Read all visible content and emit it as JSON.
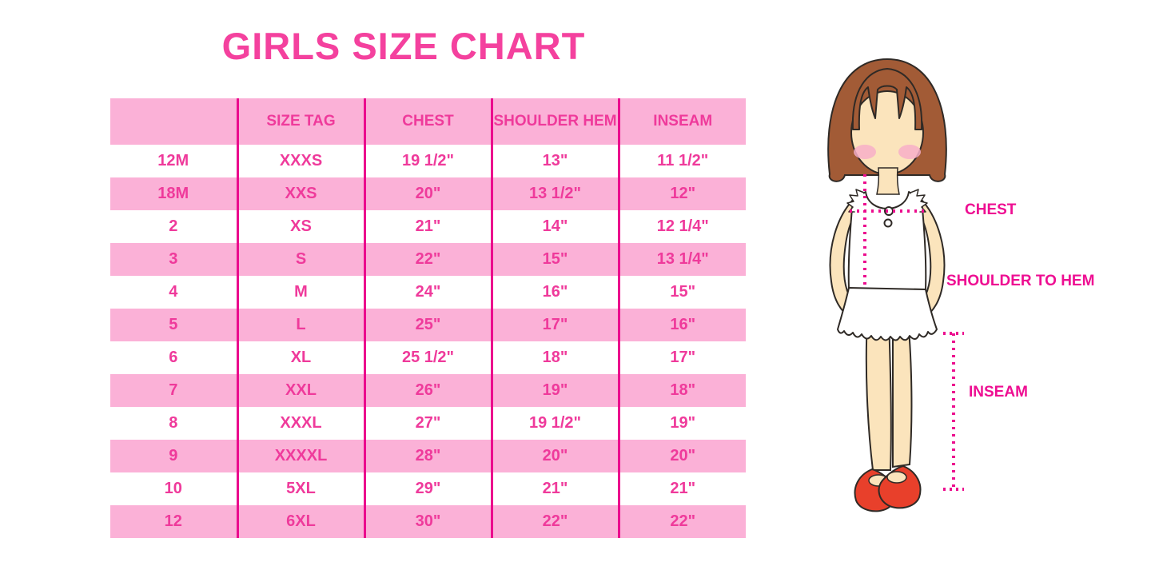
{
  "title": "GIRLS SIZE CHART",
  "colors": {
    "accent_title": "#F4419E",
    "table_text": "#EF3A9B",
    "row_pink": "#FBB1D7",
    "divider": "#EB0B8D",
    "label_magenta": "#EE0E92",
    "dotted_line": "#EC0D8E",
    "hair_brown": "#A25B36",
    "skin": "#FBE4BC",
    "blush": "#F7AFC8",
    "shoe_red": "#E8402B"
  },
  "chart_data": {
    "type": "table",
    "title": "GIRLS SIZE CHART",
    "columns": [
      "",
      "SIZE TAG",
      "CHEST",
      "SHOULDER HEM",
      "INSEAM"
    ],
    "rows": [
      [
        "12M",
        "XXXS",
        "19 1/2\"",
        "13\"",
        "11 1/2\""
      ],
      [
        "18M",
        "XXS",
        "20\"",
        "13 1/2\"",
        "12\""
      ],
      [
        "2",
        "XS",
        "21\"",
        "14\"",
        "12 1/4\""
      ],
      [
        "3",
        "S",
        "22\"",
        "15\"",
        "13 1/4\""
      ],
      [
        "4",
        "M",
        "24\"",
        "16\"",
        "15\""
      ],
      [
        "5",
        "L",
        "25\"",
        "17\"",
        "16\""
      ],
      [
        "6",
        "XL",
        "25 1/2\"",
        "18\"",
        "17\""
      ],
      [
        "7",
        "XXL",
        "26\"",
        "19\"",
        "18\""
      ],
      [
        "8",
        "XXXL",
        "27\"",
        "19 1/2\"",
        "19\""
      ],
      [
        "9",
        "XXXXL",
        "28\"",
        "20\"",
        "20\""
      ],
      [
        "10",
        "5XL",
        "29\"",
        "21\"",
        "21\""
      ],
      [
        "12",
        "6XL",
        "30\"",
        "22\"",
        "22\""
      ]
    ]
  },
  "figure": {
    "labels": {
      "chest": "CHEST",
      "shoulder_to_hem": "SHOULDER TO HEM",
      "inseam": "INSEAM"
    }
  }
}
